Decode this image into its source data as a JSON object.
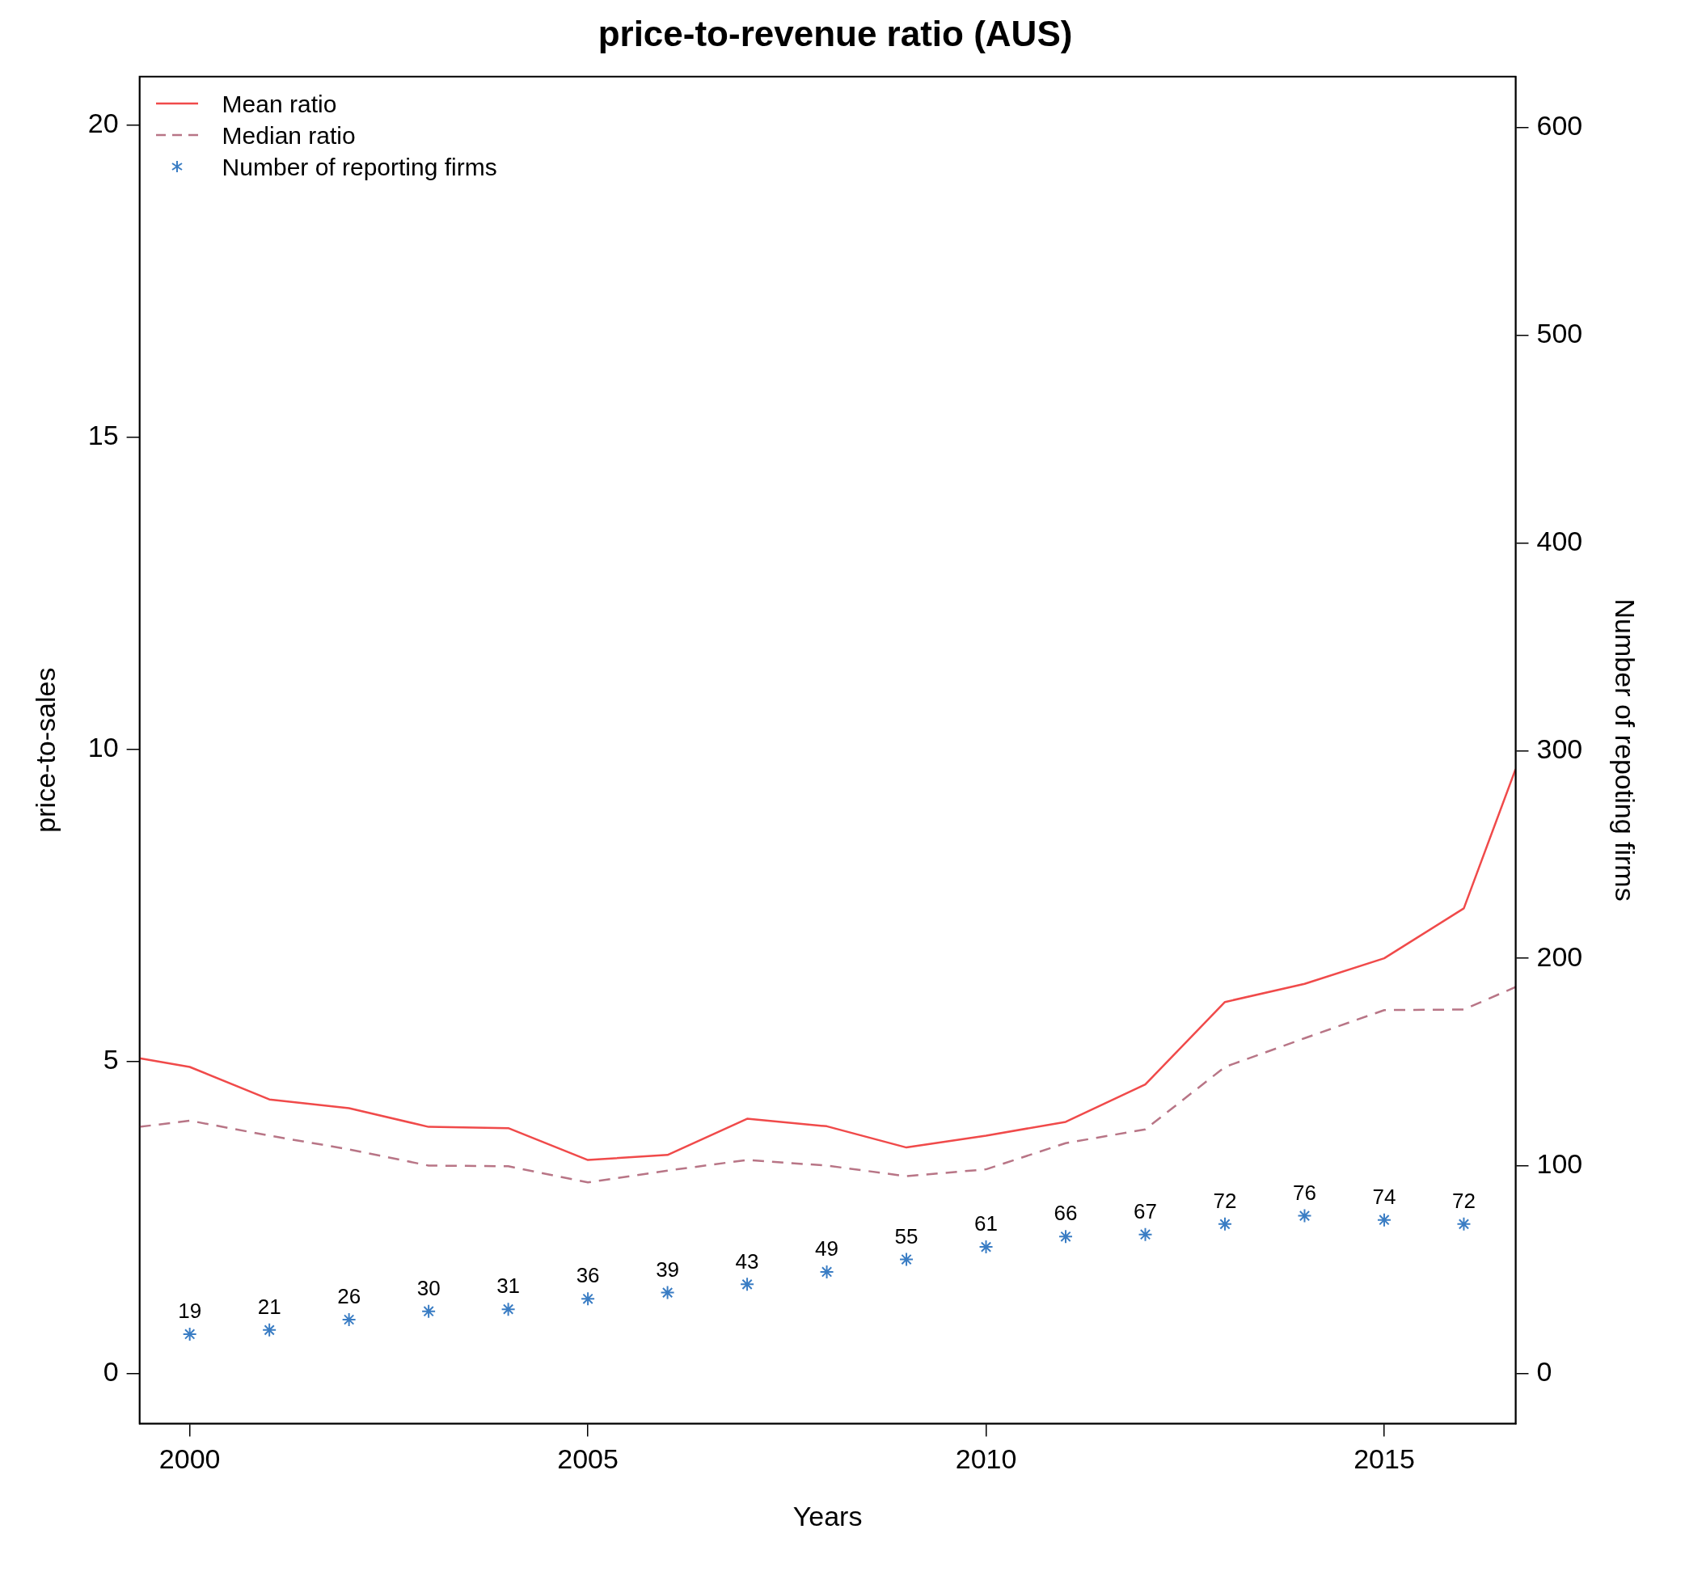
{
  "chart_data": {
    "type": "line",
    "title": "price-to-revenue ratio (AUS)",
    "xlabel": "Years",
    "ylabel": "price-to-sales",
    "y2label": "Number of repoting firms",
    "xlim": [
      1999.37,
      2016.65
    ],
    "xticks": [
      2000,
      2005,
      2010,
      2015
    ],
    "ylim": [
      -0.8,
      20.77
    ],
    "yticks": [
      0,
      5,
      10,
      15,
      20
    ],
    "y2lim": [
      -24,
      624.6
    ],
    "y2ticks": [
      0,
      100,
      200,
      300,
      400,
      500,
      600
    ],
    "grid": false,
    "legend": "top left",
    "series": [
      {
        "name": "Mean ratio",
        "color": "#f04a4a",
        "line_style": "solid",
        "marker": "none",
        "x": [
          1999.37,
          2000,
          2001,
          2002,
          2003,
          2004,
          2005,
          2006,
          2007,
          2008,
          2009,
          2010,
          2011,
          2012,
          2013,
          2014,
          2015,
          2016,
          2016.65
        ],
        "values": [
          5.05,
          4.91,
          4.39,
          4.25,
          3.95,
          3.93,
          3.42,
          3.5,
          4.08,
          3.96,
          3.62,
          3.81,
          4.03,
          4.63,
          5.95,
          6.24,
          6.65,
          7.45,
          9.68
        ]
      },
      {
        "name": "Median ratio",
        "color": "#b87586",
        "line_style": "dashed",
        "marker": "none",
        "x": [
          1999.37,
          2000,
          2001,
          2002,
          2003,
          2004,
          2005,
          2006,
          2007,
          2008,
          2009,
          2010,
          2011,
          2012,
          2013,
          2014,
          2015,
          2016,
          2016.65
        ],
        "values": [
          3.95,
          4.05,
          3.81,
          3.59,
          3.33,
          3.32,
          3.06,
          3.25,
          3.42,
          3.33,
          3.16,
          3.27,
          3.69,
          3.91,
          4.91,
          5.37,
          5.82,
          5.83,
          6.19
        ]
      },
      {
        "name": "Number of reporting firms",
        "type": "scatter",
        "axis": "y2",
        "color": "#3a7dc4",
        "marker": "cross",
        "x": [
          2000,
          2001,
          2002,
          2003,
          2004,
          2005,
          2006,
          2007,
          2008,
          2009,
          2010,
          2011,
          2012,
          2013,
          2014,
          2015,
          2016
        ],
        "values": [
          19,
          21,
          26,
          30,
          31,
          36,
          39,
          43,
          49,
          55,
          61,
          66,
          67,
          72,
          76,
          74,
          72
        ],
        "value_labels": [
          "19",
          "21",
          "26",
          "30",
          "31",
          "36",
          "39",
          "43",
          "49",
          "55",
          "61",
          "66",
          "67",
          "72",
          "76",
          "74",
          "72"
        ]
      }
    ]
  }
}
